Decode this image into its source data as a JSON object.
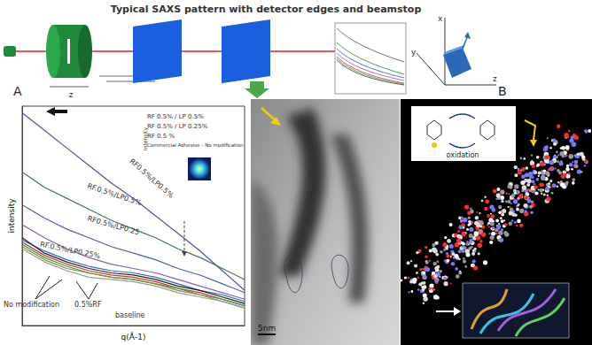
{
  "header": {
    "title": "Typical SAXS pattern with detector edges and beamstop"
  },
  "panels": {
    "setup": {
      "label": "A",
      "sample_axis": "z"
    },
    "orientation": {
      "label": "B",
      "x": "x",
      "y": "y",
      "z": "z"
    },
    "tem": {
      "scale_bar": "5nm"
    },
    "molecule": {
      "inset_label": "oxidation"
    }
  },
  "chart_data": {
    "type": "line",
    "x_label": "q(Å-1)",
    "y_label": "intensity",
    "x": [
      0,
      0.1,
      0.2,
      0.3,
      0.4,
      0.5,
      0.6,
      0.7,
      0.8,
      0.9,
      1.0
    ],
    "xlim": [
      0,
      1
    ],
    "ylim": [
      0,
      100
    ],
    "tick_labels": false,
    "grid": false,
    "series": [
      {
        "color": "#55509a",
        "values": [
          97,
          89,
          81,
          73,
          65,
          58,
          50,
          42,
          34,
          25,
          16
        ]
      },
      {
        "color": "#3d7a5c",
        "values": [
          70,
          63,
          58,
          53,
          48,
          44,
          40,
          35,
          31,
          26,
          21
        ]
      },
      {
        "color": "#4a5fb8",
        "values": [
          55,
          49,
          44,
          40,
          36,
          33,
          30,
          26,
          23,
          19,
          15
        ]
      },
      {
        "color": "#8a62a8",
        "values": [
          46,
          40,
          35,
          31,
          28,
          26,
          24,
          21,
          18,
          15,
          12
        ]
      },
      {
        "color": "#3366cc",
        "values": [
          39,
          34,
          30,
          27,
          25,
          24,
          22,
          19,
          16,
          14,
          11
        ]
      },
      {
        "color": "#222222",
        "values": [
          40,
          33,
          29,
          26,
          24,
          23,
          21,
          18,
          16,
          13,
          10
        ]
      },
      {
        "color": "#cc3333",
        "values": [
          38,
          32,
          28,
          25,
          23,
          22,
          20,
          17,
          15,
          12,
          9
        ]
      },
      {
        "color": "#2e9e4a",
        "values": [
          37,
          31,
          27,
          24,
          22,
          21,
          19,
          17,
          14,
          12,
          9
        ]
      },
      {
        "color": "#8a8a30",
        "values": [
          36,
          30,
          26,
          24,
          22,
          21,
          19,
          16,
          14,
          11,
          8
        ]
      },
      {
        "color": "#999999",
        "values": [
          35,
          29,
          25,
          22,
          21,
          20,
          18,
          15,
          13,
          11,
          8
        ]
      }
    ],
    "annotations": [
      "RF0.5%/LP0.5%",
      "RF.0.5%/LP0.5%",
      "RF0.5%/LP0.25",
      "RF.0.5%/LP0.25%",
      "No modification",
      "0.5%RF",
      "baseline"
    ],
    "inset_title": "intensity",
    "inset_labels": [
      "RF 0.5% / LP 0.5%",
      "RF 0.5% / LP 0.25%",
      "RF 0.5 %",
      "Commercial Adhesive - No modification"
    ]
  }
}
